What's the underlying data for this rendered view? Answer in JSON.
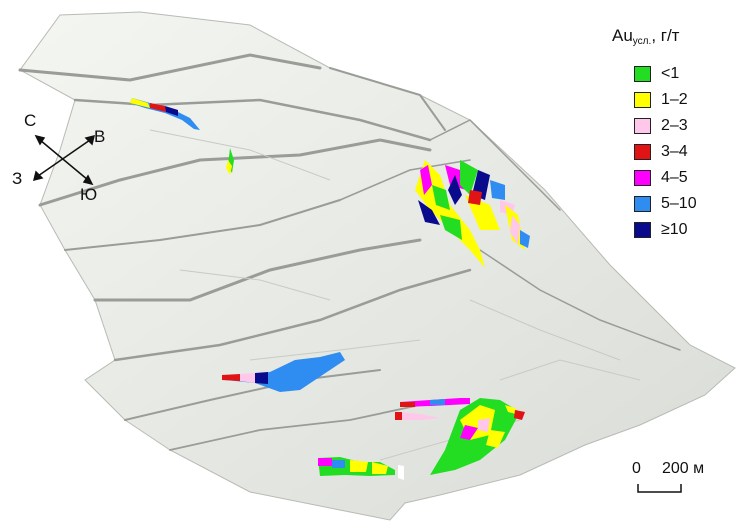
{
  "legend": {
    "title_main": "Au",
    "title_sub": "усл.",
    "title_unit": ", г/т",
    "items": [
      {
        "label": "<1",
        "color": "#22dd22"
      },
      {
        "label": "1–2",
        "color": "#ffff00"
      },
      {
        "label": "2–3",
        "color": "#ffc8ea"
      },
      {
        "label": "3–4",
        "color": "#e01414"
      },
      {
        "label": "4–5",
        "color": "#ff00ff"
      },
      {
        "label": "5–10",
        "color": "#2f8cf0"
      },
      {
        "label": "≥10",
        "color": "#0a0a8c"
      }
    ]
  },
  "compass": {
    "north": "С",
    "east": "В",
    "west": "З",
    "south": "Ю"
  },
  "scale_bar": {
    "zero": "0",
    "label": "200 м"
  },
  "terrain": {
    "surface_color": "#e9ece6",
    "ridge_color": "#9a9c98"
  }
}
